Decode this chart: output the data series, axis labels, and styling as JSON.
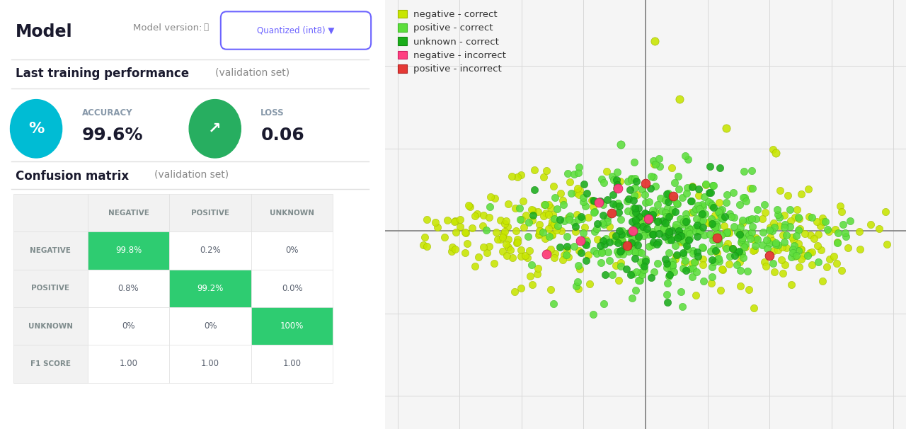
{
  "bg_color": "#ffffff",
  "title_model": "Model",
  "title_model_version": "Model version:",
  "title_quantized": "Quantized (int8) ▼",
  "perf_title": "Last training performance",
  "perf_subtitle": "(validation set)",
  "accuracy_label": "ACCURACY",
  "accuracy_value": "99.6%",
  "loss_label": "LOSS",
  "loss_value": "0.06",
  "confusion_title": "Confusion matrix",
  "confusion_subtitle": "(validation set)",
  "matrix_col_headers": [
    "",
    "NEGATIVE",
    "POSITIVE",
    "UNKNOWN"
  ],
  "matrix_row_headers": [
    "NEGATIVE",
    "POSITIVE",
    "UNKNOWN",
    "F1 SCORE"
  ],
  "matrix_data": [
    [
      "99.8%",
      "0.2%",
      "0%"
    ],
    [
      "0.8%",
      "99.2%",
      "0.0%"
    ],
    [
      "0%",
      "0%",
      "100%"
    ],
    [
      "1.00",
      "1.00",
      "1.00"
    ]
  ],
  "matrix_highlight": [
    [
      0,
      0
    ],
    [
      1,
      1
    ],
    [
      2,
      2
    ]
  ],
  "highlight_color": "#2ecc71",
  "header_bg": "#f8f8f8",
  "grid_color": "#e0e0e0",
  "cyan_circle_color": "#00bcd4",
  "green_circle_color": "#27ae60",
  "separator_color": "#e0e0e0",
  "legend_items": [
    {
      "label": "negative - correct",
      "color": "#c8e600",
      "outline": "#a0b800"
    },
    {
      "label": "positive - correct",
      "color": "#5dde3c",
      "outline": "#3db828"
    },
    {
      "label": "unknown - correct",
      "color": "#1aad1a",
      "outline": "#148a14"
    },
    {
      "label": "negative - incorrect",
      "color": "#ff4081",
      "outline": "#cc2060"
    },
    {
      "label": "positive - incorrect",
      "color": "#e53935",
      "outline": "#b02020"
    }
  ],
  "scatter_bg": "#f5f5f5"
}
